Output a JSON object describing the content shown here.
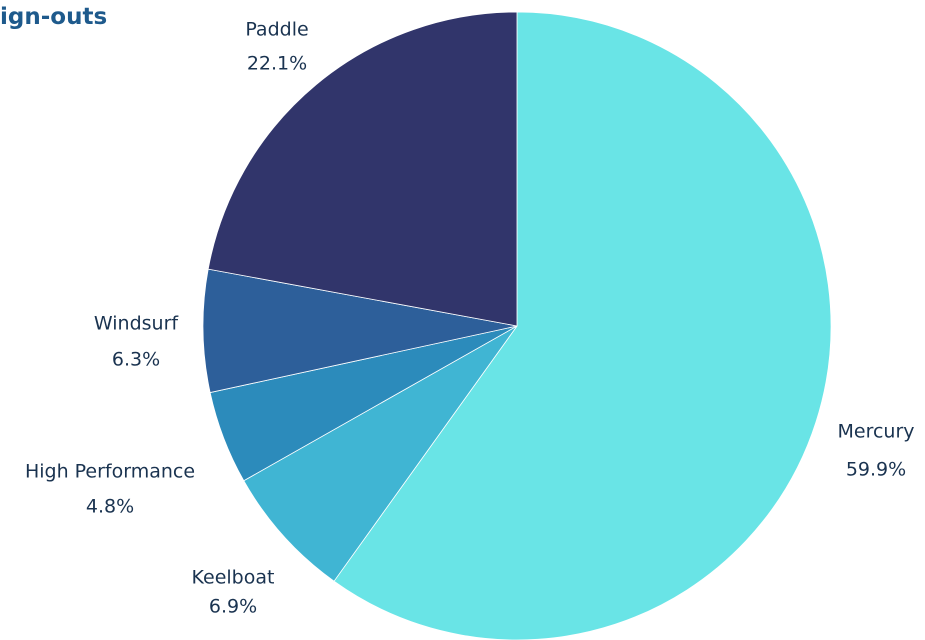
{
  "chart_data": {
    "type": "pie",
    "title": "ign-outs",
    "slices": [
      {
        "name": "Mercury",
        "label": "59.9%",
        "value": 59.9,
        "color": "#69e4e6"
      },
      {
        "name": "Keelboat",
        "label": "6.9%",
        "value": 6.9,
        "color": "#40b5d3"
      },
      {
        "name": "High Performance",
        "label": "4.8%",
        "value": 4.8,
        "color": "#2c8bbb"
      },
      {
        "name": "Windsurf",
        "label": "6.3%",
        "value": 6.3,
        "color": "#2d5f9a"
      },
      {
        "name": "Paddle",
        "label": "22.1%",
        "value": 22.1,
        "color": "#31356b"
      }
    ]
  }
}
